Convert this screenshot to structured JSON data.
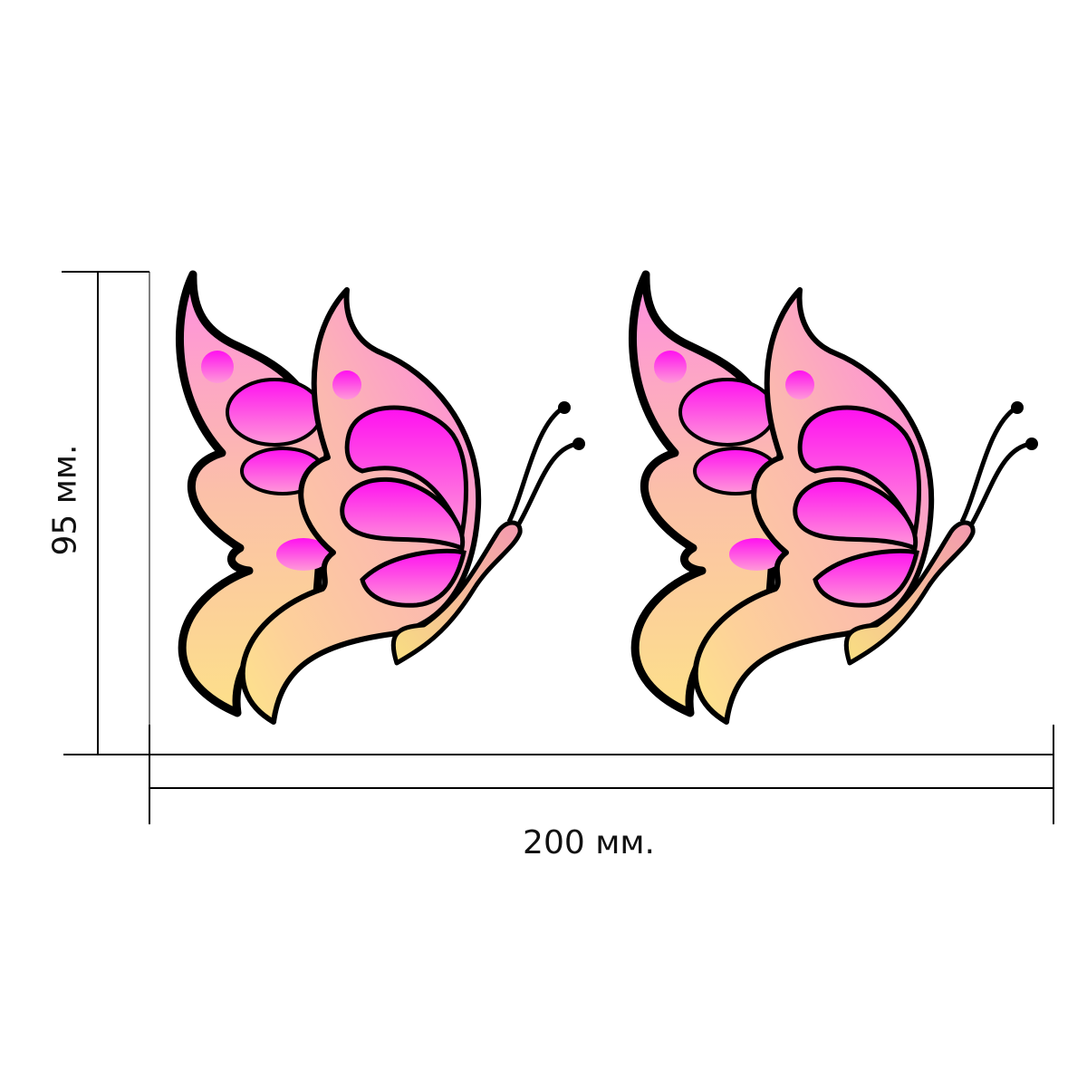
{
  "dimensions": {
    "height_label": "95 мм.",
    "width_label": "200 мм."
  },
  "artwork": {
    "subject": "butterfly",
    "count": 2,
    "colors": {
      "outline": "#000000",
      "wing_pink": "#ff3df0",
      "wing_peach": "#fbc9a0",
      "wing_yellow": "#fde08a",
      "body": "#f3a0a8"
    }
  }
}
